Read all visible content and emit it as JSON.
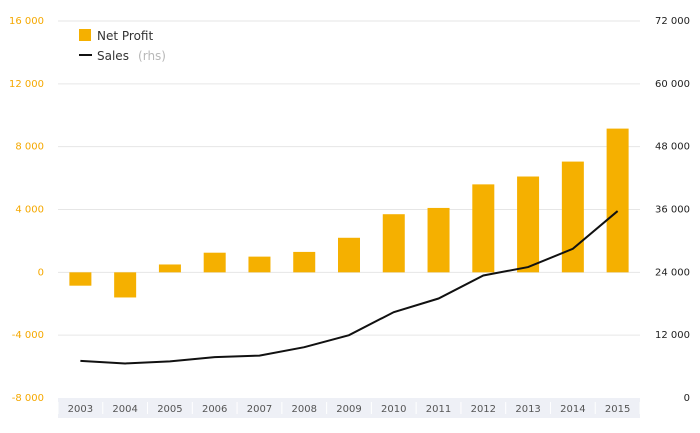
{
  "colors": {
    "bar": "#f5b000",
    "line": "#111111",
    "grid": "#e6e6e6",
    "axis_band": "#eef0f6",
    "left_ticks": "#f5a800"
  },
  "legend": {
    "bar_label": "Net Profit",
    "line_label": "Sales",
    "line_note": "(rhs)"
  },
  "chart_data": {
    "type": "bar",
    "categories": [
      "2003",
      "2004",
      "2005",
      "2006",
      "2007",
      "2008",
      "2009",
      "2010",
      "2011",
      "2012",
      "2013",
      "2014",
      "2015"
    ],
    "series": [
      {
        "name": "Net Profit",
        "type": "bar",
        "axis": "left",
        "values": [
          -850,
          -1600,
          500,
          1250,
          1000,
          1300,
          2200,
          3700,
          4100,
          5600,
          6100,
          7050,
          9150
        ]
      },
      {
        "name": "Sales",
        "type": "line",
        "axis": "right",
        "values": [
          7100,
          6600,
          7000,
          7800,
          8100,
          9700,
          12000,
          16400,
          19000,
          23400,
          25000,
          28500,
          35700
        ]
      }
    ],
    "ylim_left": [
      -8000,
      16000
    ],
    "ylim_right": [
      0,
      72000
    ],
    "yticks_left": [
      "-8 000",
      "-4 000",
      "0",
      "4 000",
      "8 000",
      "12 000",
      "16 000"
    ],
    "yticks_right": [
      "0",
      "12 000",
      "24 000",
      "36 000",
      "48 000",
      "60 000",
      "72 000"
    ],
    "grid": true,
    "legend_position": "top-left"
  }
}
